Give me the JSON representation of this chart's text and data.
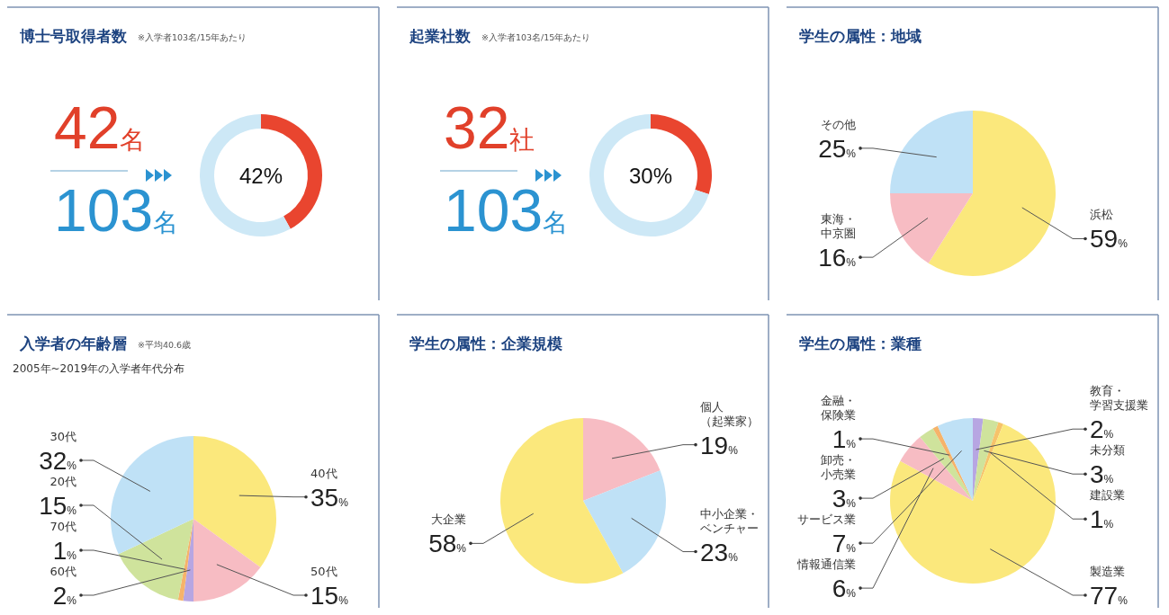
{
  "chart_data": [
    {
      "type": "donut",
      "title": "博士号取得者数",
      "subtitle": "※入学者103名/15年あたり",
      "categories": [
        null,
        null
      ],
      "values": [
        42,
        58
      ],
      "colors": [
        "#e9452f",
        "#cde8f6"
      ],
      "annotations": [
        "42名",
        "103名",
        "42%"
      ]
    },
    {
      "type": "donut",
      "title": "起業社数",
      "subtitle": "※入学者103名/15年あたり",
      "categories": [
        null,
        null
      ],
      "values": [
        30,
        70
      ],
      "colors": [
        "#e9452f",
        "#cde8f6"
      ],
      "annotations": [
        "32社",
        "103名",
        "30%"
      ]
    },
    {
      "type": "pie",
      "title": "学生の属性：地域",
      "categories": [
        "浜松",
        "東海・中京圏",
        "その他"
      ],
      "values": [
        59,
        16,
        25
      ],
      "colors": [
        "#fbe87c",
        "#f7bcc3",
        "#bfe1f6"
      ],
      "value_labels": [
        "59%",
        "16%",
        "25%"
      ]
    },
    {
      "type": "pie",
      "title": "入学者の年齢層",
      "subtitle": "※平均40.6歳",
      "annotations": [
        "2005年~2019年の入学者年代分布"
      ],
      "categories": [
        "40代",
        "50代",
        "60代",
        "70代",
        "20代",
        "30代"
      ],
      "values": [
        35,
        15,
        2,
        1,
        15,
        32
      ],
      "colors": [
        "#fbe87c",
        "#f7bcc3",
        "#b7a6e2",
        "#f6b36a",
        "#cfe39c",
        "#bfe1f6"
      ],
      "value_labels": [
        "35%",
        "15%",
        "2%",
        "1%",
        "15%",
        "32%"
      ]
    },
    {
      "type": "pie",
      "title": "学生の属性：企業規模",
      "categories": [
        "個人（起業家）",
        "中小企業・ベンチャー",
        "大企業"
      ],
      "values": [
        19,
        23,
        58
      ],
      "colors": [
        "#f7bcc3",
        "#bfe1f6",
        "#fbe87c"
      ],
      "value_labels": [
        "19%",
        "23%",
        "58%"
      ]
    },
    {
      "type": "pie",
      "title": "学生の属性：業種",
      "categories": [
        "教育・学習支援業",
        "未分類",
        "建設業",
        "製造業",
        "情報通信業",
        "卸売・小売業",
        "金融・保険業",
        "サービス業"
      ],
      "values": [
        2,
        3,
        1,
        77,
        6,
        3,
        1,
        7
      ],
      "colors": [
        "#b7a6e2",
        "#cfe39c",
        "#f6c36a",
        "#fbe87c",
        "#f7bcc3",
        "#cfe39c",
        "#f6b36a",
        "#bfe1f6"
      ],
      "value_labels": [
        "2%",
        "3%",
        "1%",
        "77%",
        "6%",
        "3%",
        "1%",
        "7%"
      ]
    }
  ]
}
